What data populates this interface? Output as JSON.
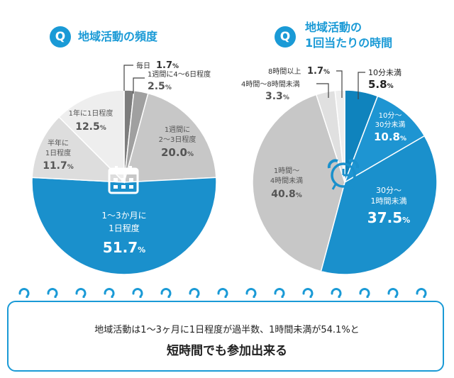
{
  "chart_data": [
    {
      "type": "pie",
      "title": "地域活動の頻度",
      "slices": [
        {
          "label": "毎日",
          "value": 1.7,
          "value_text": "1.7",
          "color": "#7d7d7d"
        },
        {
          "label": "1週間に4〜6日程度",
          "value": 2.5,
          "value_text": "2.5",
          "color": "#a0a0a0"
        },
        {
          "label": "1週間に2〜3日程度",
          "value": 20.0,
          "value_text": "20.0",
          "color": "#c7c7c7"
        },
        {
          "label": "1〜3か月に1日程度",
          "value": 51.7,
          "value_text": "51.7",
          "color": "#1a90cc"
        },
        {
          "label": "半年に1日程度",
          "value": 11.7,
          "value_text": "11.7",
          "color": "#dddddd"
        },
        {
          "label": "1年に1日程度",
          "value": 12.5,
          "value_text": "12.5",
          "color": "#eeeeee"
        }
      ],
      "unit": "%",
      "icon": "calendar-icon"
    },
    {
      "type": "pie",
      "title": "地域活動の1回当たりの時間",
      "slices": [
        {
          "label": "10分未満",
          "value": 5.8,
          "value_text": "5.8",
          "color": "#0f83bd"
        },
        {
          "label": "10分〜30分未満",
          "value": 10.8,
          "value_text": "10.8",
          "color": "#1e95d2"
        },
        {
          "label": "30分〜1時間未満",
          "value": 37.5,
          "value_text": "37.5",
          "color": "#1a90cc"
        },
        {
          "label": "1時間〜4時間未満",
          "value": 40.8,
          "value_text": "40.8",
          "color": "#c7c7c7"
        },
        {
          "label": "4時間〜8時間未満",
          "value": 3.3,
          "value_text": "3.3",
          "color": "#e0e0e0"
        },
        {
          "label": "8時間以上",
          "value": 1.7,
          "value_text": "1.7",
          "color": "#eeeeee"
        }
      ],
      "unit": "%",
      "icon": "alarm-clock-icon"
    }
  ],
  "badges": {
    "left": "Q",
    "right": "Q"
  },
  "titles": {
    "left": "地域活動の頻度",
    "right_line1": "地域活動の",
    "right_line2": "1回当たりの時間"
  },
  "labels": {
    "l_daily": "毎日",
    "l_daily_pct": "1.7",
    "l_w46": "1週間に4〜6日程度",
    "l_w46_pct": "2.5",
    "l_w23_a": "1週間に",
    "l_w23_b": "2〜3日程度",
    "l_w23_pct": "20.0",
    "l_m13_a": "1〜3か月に",
    "l_m13_b": "1日程度",
    "l_m13_pct": "51.7",
    "l_h_a": "半年に",
    "l_h_b": "1日程度",
    "l_h_pct": "11.7",
    "l_y_a": "1年に1日程度",
    "l_y_pct": "12.5",
    "r_10_a": "10分未満",
    "r_10_pct": "5.8",
    "r_1030_a": "10分〜",
    "r_1030_b": "30分未満",
    "r_1030_pct": "10.8",
    "r_301_a": "30分〜",
    "r_301_b": "1時間未満",
    "r_301_pct": "37.5",
    "r_14_a": "1時間〜",
    "r_14_b": "4時間未満",
    "r_14_pct": "40.8",
    "r_48_a": "4時間〜8時間未満",
    "r_48_pct": "3.3",
    "r_8_a": "8時間以上",
    "r_8_pct": "1.7",
    "unit": "%"
  },
  "summary": {
    "line1": "地域活動は1〜3ヶ月に1日程度が過半数、1時間未満が54.1%と",
    "line2": "短時間でも参加出来る"
  },
  "colors": {
    "accent": "#1a9ad6",
    "dark_gray": "#7d7d7d"
  }
}
